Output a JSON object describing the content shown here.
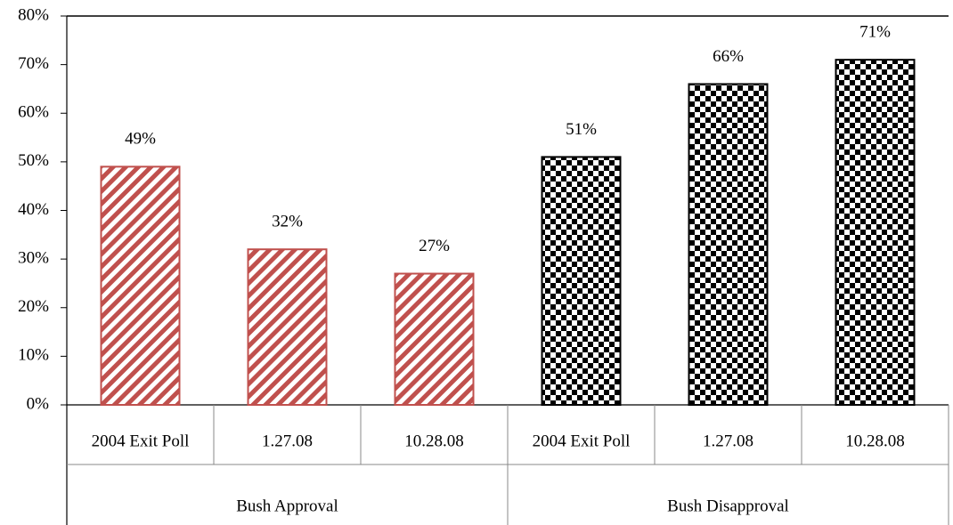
{
  "chart_data": {
    "type": "grouped-bar",
    "groups": [
      {
        "name": "Bush Approval",
        "categories": [
          "2004 Exit Poll",
          "1.27.08",
          "10.28.08"
        ],
        "values": [
          49,
          32,
          27
        ],
        "value_labels": [
          "49%",
          "32%",
          "27%"
        ],
        "color": "#c0504d",
        "pattern": "stripes"
      },
      {
        "name": "Bush Disapproval",
        "categories": [
          "2004 Exit Poll",
          "1.27.08",
          "10.28.08"
        ],
        "values": [
          51,
          66,
          71
        ],
        "value_labels": [
          "51%",
          "66%",
          "71%"
        ],
        "color": "#000000",
        "pattern": "checker"
      }
    ],
    "ylim": [
      0,
      80
    ],
    "yticks": [
      {
        "value": 0,
        "label": "0%"
      },
      {
        "value": 10,
        "label": "10%"
      },
      {
        "value": 20,
        "label": "20%"
      },
      {
        "value": 30,
        "label": "30%"
      },
      {
        "value": 40,
        "label": "40%"
      },
      {
        "value": 50,
        "label": "50%"
      },
      {
        "value": 60,
        "label": "60%"
      },
      {
        "value": 70,
        "label": "70%"
      },
      {
        "value": 80,
        "label": "80%"
      }
    ]
  }
}
